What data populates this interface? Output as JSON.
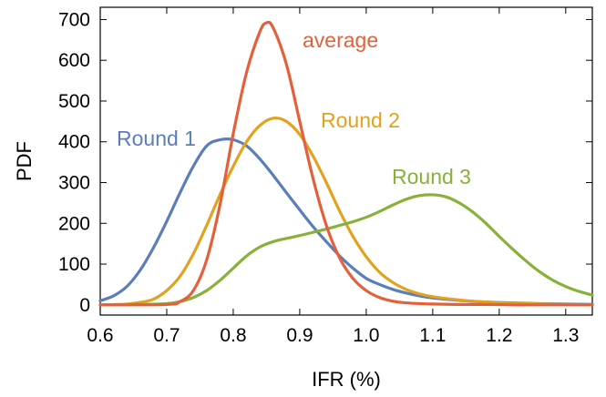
{
  "chart_data": {
    "type": "line",
    "xlabel": "IFR (%)",
    "ylabel": "PDF",
    "xlim": [
      0.6,
      1.34
    ],
    "ylim": [
      -25,
      730
    ],
    "xticks": [
      0.6,
      0.7,
      0.8,
      0.9,
      1.0,
      1.1,
      1.2,
      1.3
    ],
    "xtick_labels": [
      "0.6",
      "0.7",
      "0.8",
      "0.9",
      "1.0",
      "1.1",
      "1.2",
      "1.3"
    ],
    "yticks": [
      0,
      100,
      200,
      300,
      400,
      500,
      600,
      700
    ],
    "ytick_labels": [
      "0",
      "100",
      "200",
      "300",
      "400",
      "500",
      "600",
      "700"
    ],
    "frame": true,
    "grid": false,
    "legend": "inline labels near curves",
    "series": [
      {
        "name": "Round 1",
        "color": "#5b7db8",
        "x": [
          0.6,
          0.62,
          0.64,
          0.66,
          0.68,
          0.7,
          0.72,
          0.74,
          0.76,
          0.78,
          0.8,
          0.82,
          0.84,
          0.86,
          0.88,
          0.9,
          0.92,
          0.94,
          0.96,
          0.98,
          1.0,
          1.02,
          1.04,
          1.06,
          1.08,
          1.1,
          1.14,
          1.18,
          1.22,
          1.26,
          1.3,
          1.34
        ],
        "values": [
          10,
          22,
          45,
          85,
          140,
          205,
          275,
          340,
          390,
          405,
          405,
          390,
          358,
          318,
          275,
          233,
          192,
          155,
          120,
          90,
          65,
          50,
          38,
          29,
          22,
          17,
          11,
          7,
          5,
          3,
          2,
          1
        ]
      },
      {
        "name": "Round 2",
        "color": "#e2a21f",
        "x": [
          0.6,
          0.64,
          0.66,
          0.68,
          0.7,
          0.72,
          0.74,
          0.76,
          0.78,
          0.8,
          0.82,
          0.84,
          0.86,
          0.88,
          0.9,
          0.92,
          0.94,
          0.96,
          0.98,
          1.0,
          1.02,
          1.04,
          1.06,
          1.08,
          1.1,
          1.14,
          1.18,
          1.22,
          1.26,
          1.3,
          1.34
        ],
        "values": [
          0,
          2,
          6,
          14,
          35,
          70,
          125,
          195,
          270,
          340,
          400,
          440,
          458,
          450,
          418,
          365,
          300,
          230,
          168,
          118,
          80,
          55,
          38,
          27,
          20,
          12,
          7,
          4,
          2,
          1,
          0
        ]
      },
      {
        "name": "Round 3",
        "color": "#88b13a",
        "x": [
          0.6,
          0.66,
          0.7,
          0.72,
          0.74,
          0.76,
          0.78,
          0.8,
          0.82,
          0.84,
          0.86,
          0.88,
          0.9,
          0.92,
          0.94,
          0.96,
          0.98,
          1.0,
          1.02,
          1.04,
          1.06,
          1.08,
          1.1,
          1.12,
          1.14,
          1.16,
          1.18,
          1.2,
          1.22,
          1.24,
          1.26,
          1.28,
          1.3,
          1.32,
          1.34
        ],
        "values": [
          0,
          1,
          3,
          8,
          18,
          35,
          60,
          90,
          120,
          142,
          155,
          163,
          170,
          178,
          186,
          195,
          204,
          215,
          229,
          245,
          259,
          268,
          270,
          265,
          250,
          228,
          200,
          168,
          137,
          108,
          82,
          61,
          45,
          33,
          24
        ]
      },
      {
        "name": "average",
        "color": "#e5603a",
        "x": [
          0.6,
          0.7,
          0.72,
          0.74,
          0.76,
          0.78,
          0.8,
          0.82,
          0.84,
          0.85,
          0.86,
          0.88,
          0.9,
          0.92,
          0.94,
          0.96,
          0.98,
          1.0,
          1.02,
          1.04,
          1.06,
          1.08,
          1.1,
          1.14,
          1.18,
          1.22,
          1.26,
          1.3,
          1.34
        ],
        "values": [
          0,
          1,
          8,
          35,
          110,
          245,
          420,
          570,
          670,
          692,
          680,
          590,
          450,
          310,
          195,
          115,
          65,
          35,
          18,
          9,
          5,
          3,
          2,
          1,
          1,
          0,
          0,
          0,
          0
        ]
      }
    ]
  }
}
